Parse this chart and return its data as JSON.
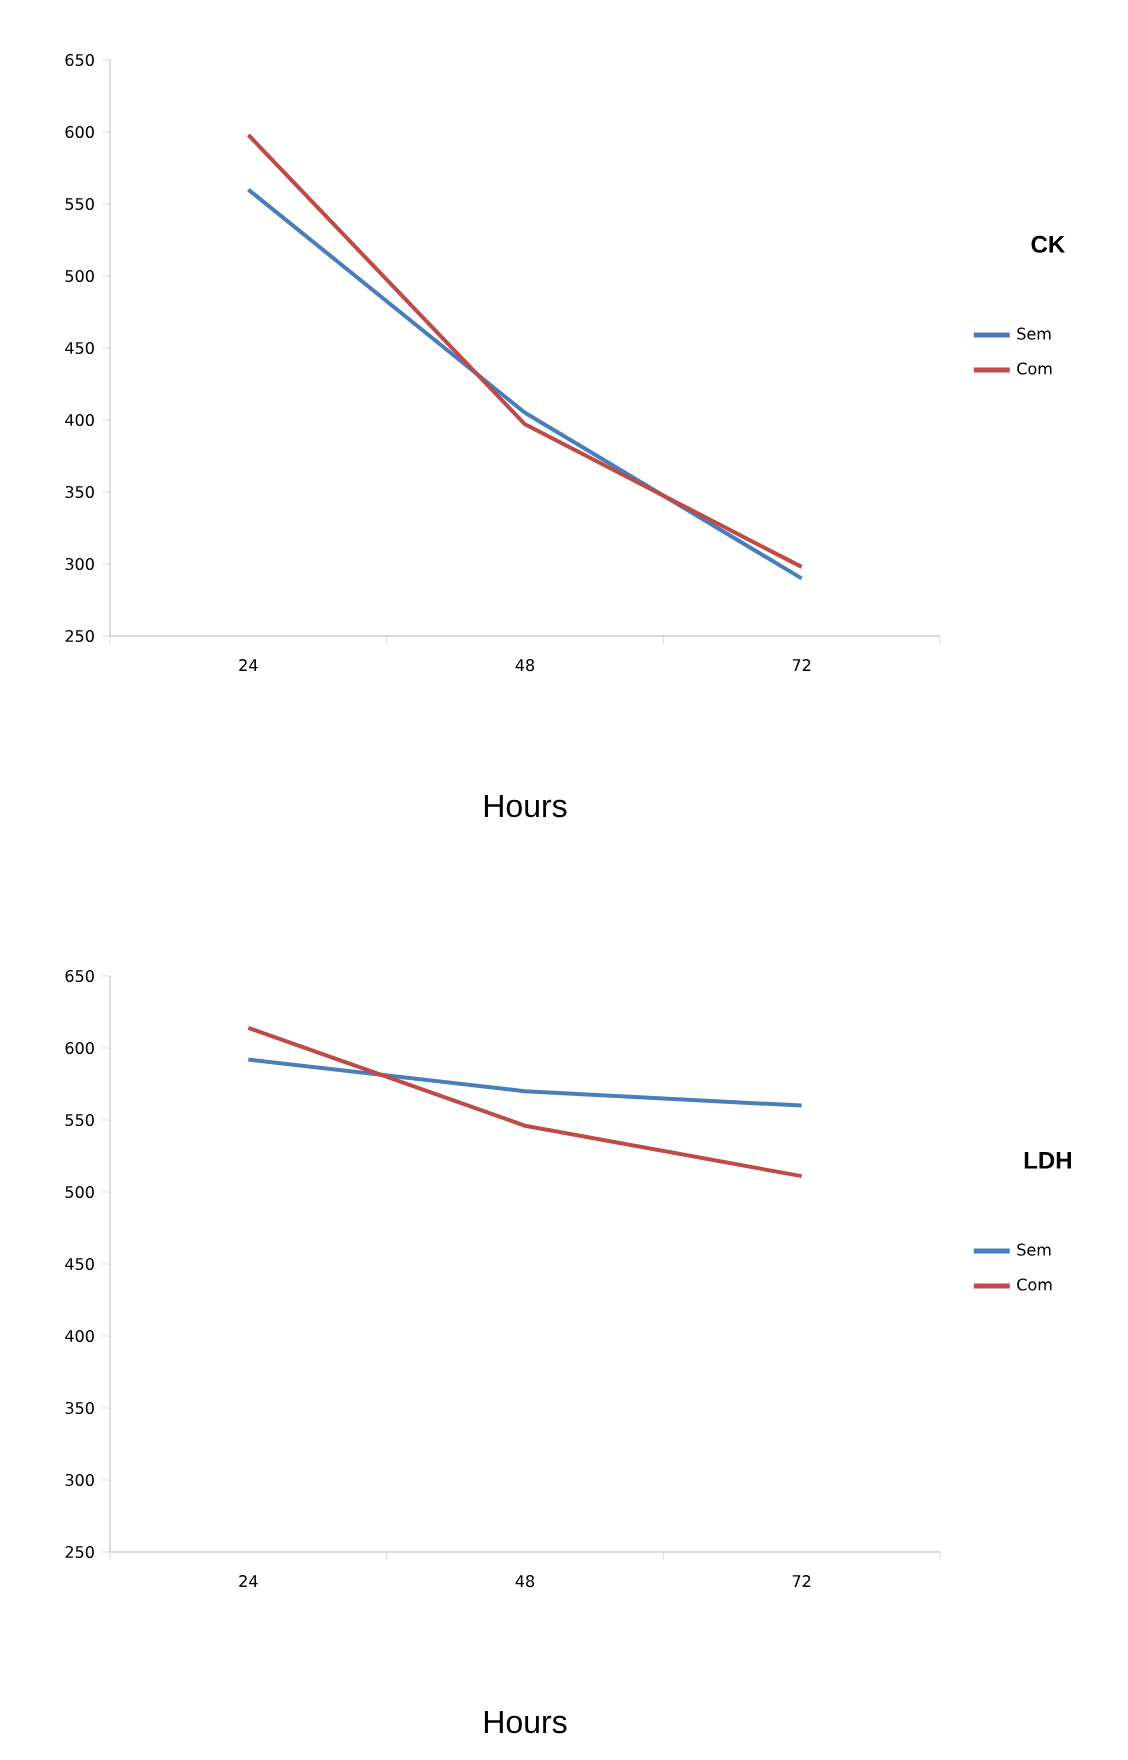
{
  "chart_data": [
    {
      "type": "line",
      "categories": [
        "24",
        "48",
        "72"
      ],
      "xlabel": "Hours",
      "legend_title": "CK",
      "legend": "right",
      "ylim": [
        250,
        650
      ],
      "yticks": [
        250,
        300,
        350,
        400,
        450,
        500,
        550,
        600,
        650
      ],
      "grid": false,
      "marker": "none",
      "line_style": "solid",
      "series": [
        {
          "name": "Sem",
          "color": "#4a7ebb",
          "values": [
            560,
            405,
            290
          ]
        },
        {
          "name": "Com",
          "color": "#be4b48",
          "values": [
            598,
            397,
            298
          ]
        }
      ]
    },
    {
      "type": "line",
      "categories": [
        "24",
        "48",
        "72"
      ],
      "xlabel": "Hours",
      "legend_title": "LDH",
      "legend": "right",
      "ylim": [
        250,
        650
      ],
      "yticks": [
        250,
        300,
        350,
        400,
        450,
        500,
        550,
        600,
        650
      ],
      "grid": false,
      "marker": "none",
      "line_style": "solid",
      "series": [
        {
          "name": "Sem",
          "color": "#4a7ebb",
          "values": [
            592,
            570,
            560
          ]
        },
        {
          "name": "Com",
          "color": "#be4b48",
          "values": [
            614,
            546,
            511
          ]
        }
      ]
    }
  ]
}
